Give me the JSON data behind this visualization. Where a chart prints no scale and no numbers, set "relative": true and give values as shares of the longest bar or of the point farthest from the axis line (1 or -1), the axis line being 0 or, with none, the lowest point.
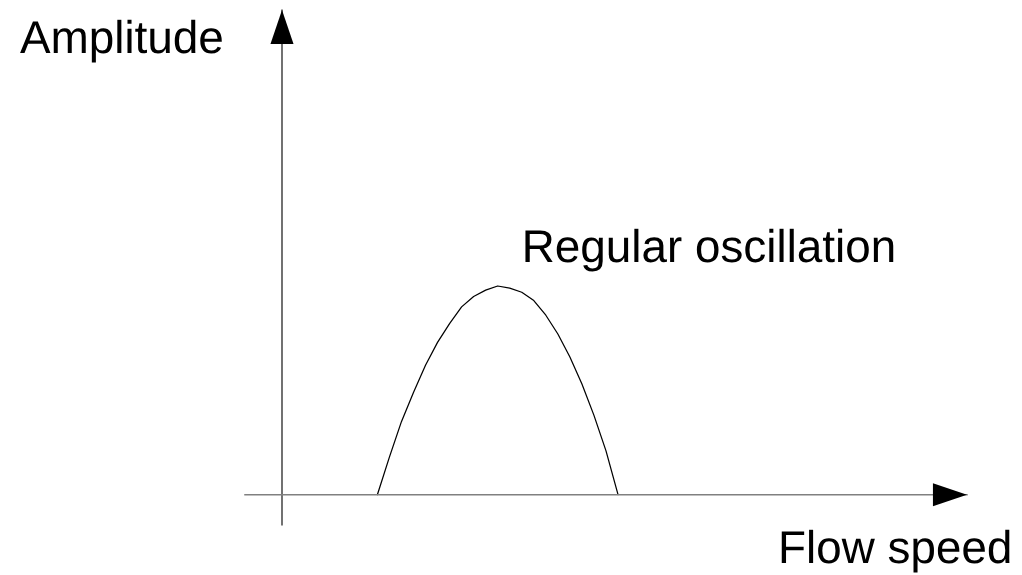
{
  "chart_data": {
    "type": "line",
    "xlabel": "Flow speed",
    "ylabel": "Amplitude",
    "relative": true,
    "categories": [
      null,
      null,
      null,
      null,
      null,
      null,
      null,
      null,
      null,
      null,
      null,
      null,
      null,
      null,
      null,
      null,
      null,
      null,
      null,
      null,
      null,
      null,
      null,
      null,
      null,
      null,
      null,
      null,
      null,
      null,
      null,
      null,
      null,
      null,
      null,
      null,
      null,
      null,
      null,
      null,
      null,
      null,
      null,
      null,
      null,
      null,
      null,
      null,
      null,
      null,
      null,
      null,
      null,
      null,
      null,
      null,
      null,
      null,
      null,
      null,
      null
    ],
    "series": [
      {
        "name": "Regular oscillation",
        "color": "#000000",
        "values": [
          null,
          null,
          null,
          null,
          null,
          null,
          null,
          null,
          null,
          null,
          null,
          0,
          0.18,
          0.35,
          0.49,
          0.62,
          0.73,
          0.82,
          0.9,
          0.95,
          0.98,
          1,
          0.99,
          0.97,
          0.93,
          0.86,
          0.77,
          0.66,
          0.53,
          0.38,
          0.21,
          0,
          null,
          null,
          null,
          null,
          null,
          null,
          null,
          null,
          null,
          null,
          null,
          null,
          null,
          null,
          null,
          null,
          null,
          null,
          null,
          null,
          null,
          null,
          null,
          null,
          null,
          null,
          null,
          null,
          null
        ]
      }
    ]
  }
}
